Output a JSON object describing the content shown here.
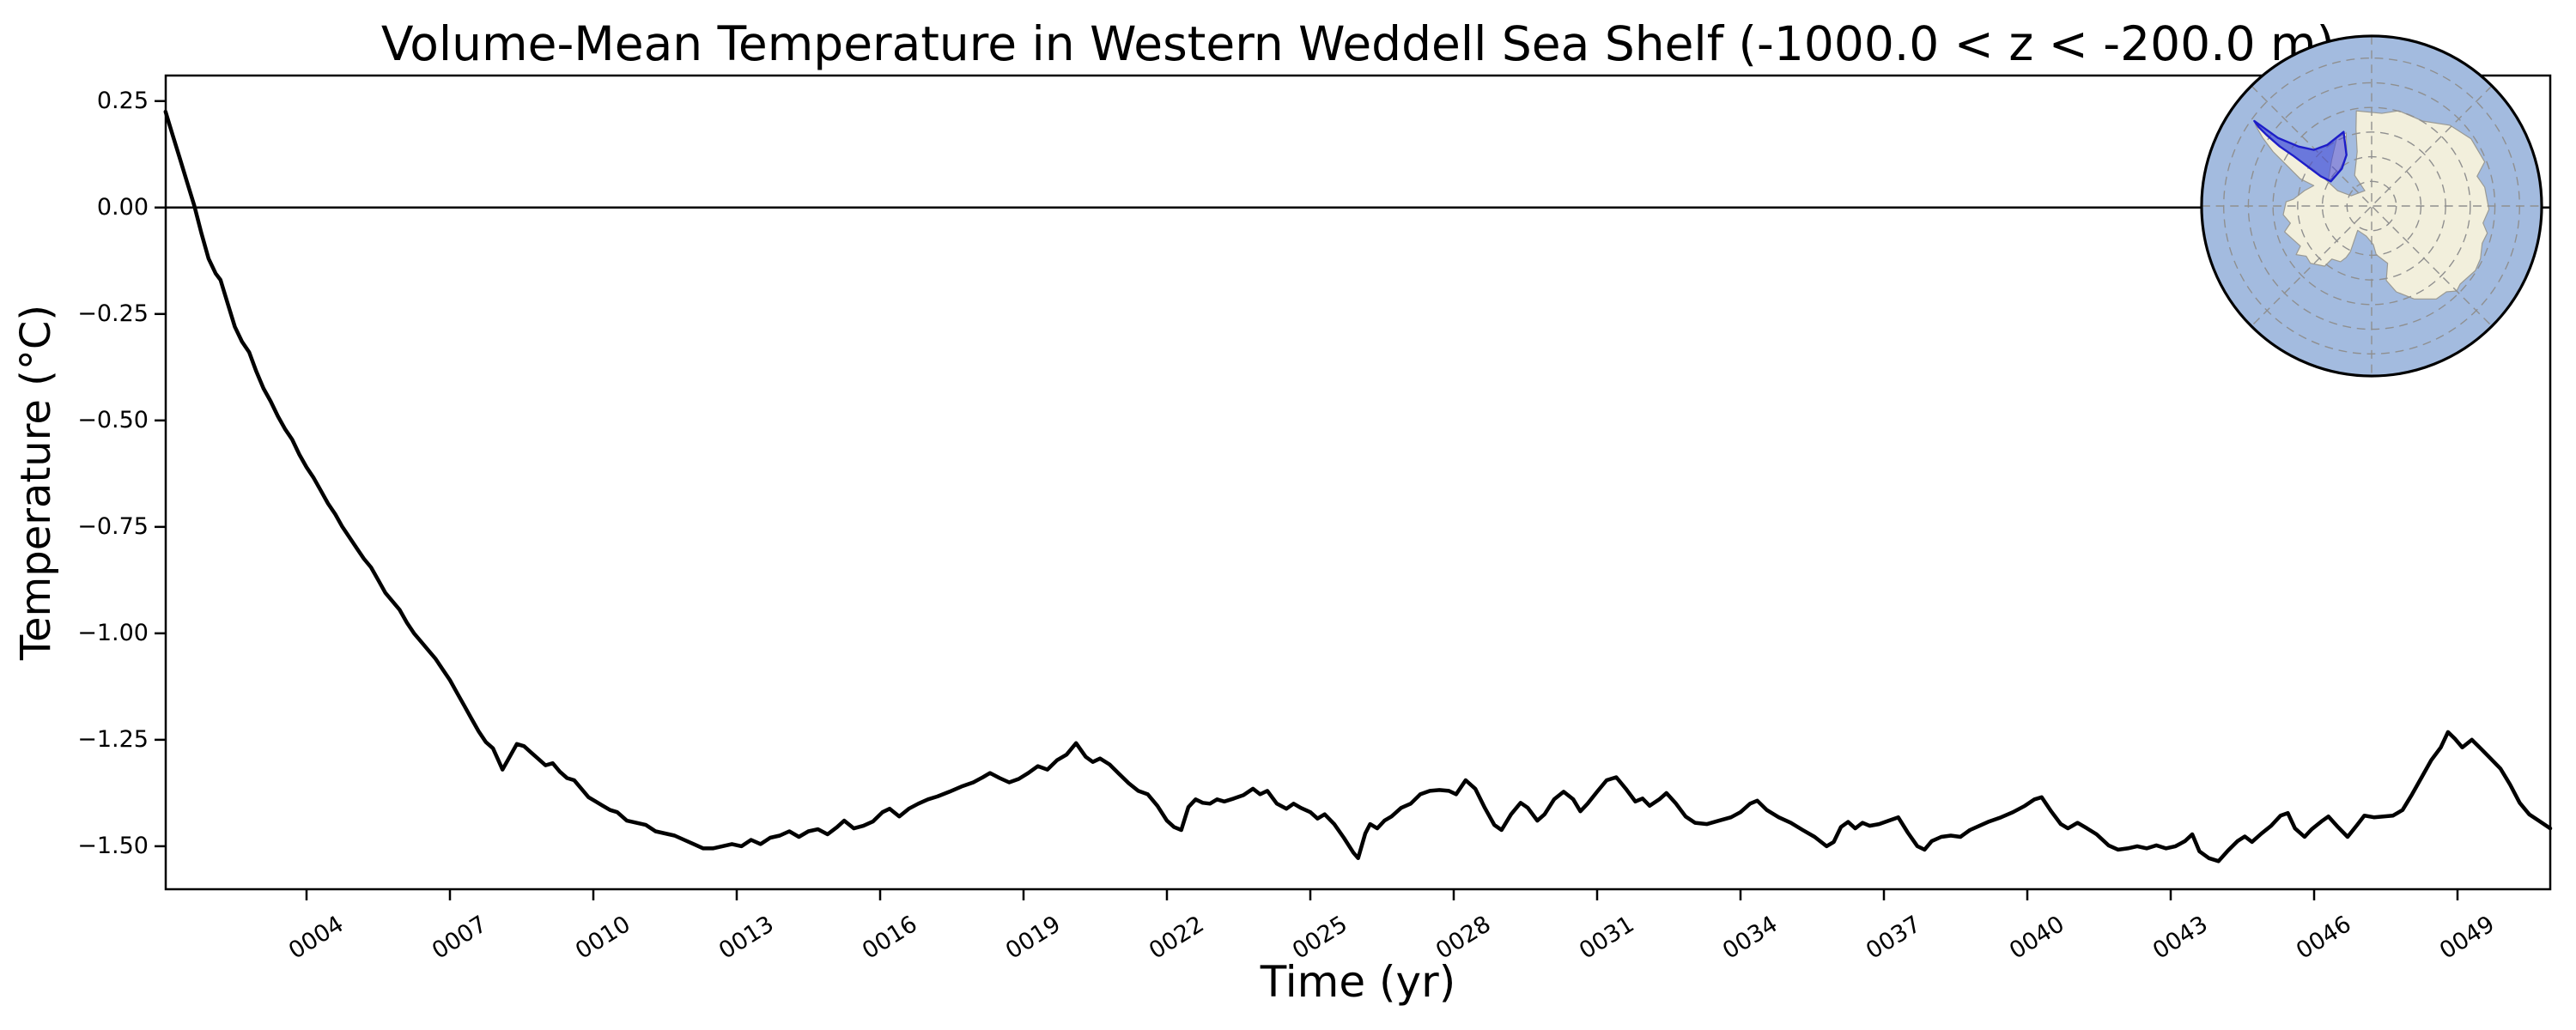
{
  "chart_data": {
    "type": "line",
    "title": "Volume-Mean Temperature in Western Weddell Sea Shelf (-1000.0 < z < -200.0 m)",
    "xlabel": "Time (yr)",
    "ylabel": "Temperature (°C)",
    "xlim": [
      1.054,
      50.94
    ],
    "ylim": [
      -1.601,
      0.31
    ],
    "grid": false,
    "zero_line_y": 0.0,
    "line": {
      "color": "#000000",
      "width": 4.5
    },
    "axis": {
      "spine_color": "#000000",
      "spine_width": 2.5,
      "tick_length": 13,
      "tick_width": 2.5
    },
    "x_ticks": {
      "values": [
        4,
        7,
        10,
        13,
        16,
        19,
        22,
        25,
        28,
        31,
        34,
        37,
        40,
        43,
        46,
        49
      ],
      "labels": [
        "0004",
        "0007",
        "0010",
        "0013",
        "0016",
        "0019",
        "0022",
        "0025",
        "0028",
        "0031",
        "0034",
        "0037",
        "0040",
        "0043",
        "0046",
        "0049"
      ],
      "rotation_deg": 32
    },
    "y_ticks": {
      "values": [
        0.25,
        0.0,
        -0.25,
        -0.5,
        -0.75,
        -1.0,
        -1.25,
        -1.5
      ],
      "labels": [
        "0.25",
        "0.00",
        "−0.25",
        "−0.50",
        "−0.75",
        "−1.00",
        "−1.25",
        "−1.50"
      ]
    },
    "series": [
      {
        "name": "volume-mean-temperature",
        "x": [
          1.05,
          1.2,
          1.35,
          1.5,
          1.65,
          1.8,
          1.95,
          2.1,
          2.2,
          2.35,
          2.5,
          2.65,
          2.8,
          2.95,
          3.1,
          3.25,
          3.4,
          3.55,
          3.7,
          3.85,
          4.0,
          4.15,
          4.3,
          4.45,
          4.6,
          4.75,
          4.9,
          5.05,
          5.2,
          5.35,
          5.5,
          5.65,
          5.8,
          5.95,
          6.1,
          6.25,
          6.4,
          6.55,
          6.7,
          6.85,
          7.0,
          7.15,
          7.3,
          7.45,
          7.6,
          7.75,
          7.9,
          8.0,
          8.1,
          8.25,
          8.4,
          8.55,
          8.7,
          8.85,
          9.0,
          9.15,
          9.3,
          9.45,
          9.6,
          9.75,
          9.9,
          10.05,
          10.2,
          10.35,
          10.5,
          10.7,
          10.9,
          11.1,
          11.3,
          11.5,
          11.7,
          11.9,
          12.1,
          12.3,
          12.5,
          12.7,
          12.9,
          13.1,
          13.3,
          13.5,
          13.7,
          13.9,
          14.1,
          14.3,
          14.5,
          14.7,
          14.9,
          15.1,
          15.25,
          15.45,
          15.65,
          15.85,
          16.05,
          16.2,
          16.4,
          16.6,
          16.8,
          17.0,
          17.2,
          17.45,
          17.7,
          17.95,
          18.15,
          18.3,
          18.5,
          18.7,
          18.9,
          19.1,
          19.3,
          19.5,
          19.7,
          19.9,
          20.1,
          20.3,
          20.45,
          20.6,
          20.8,
          21.0,
          21.2,
          21.4,
          21.6,
          21.8,
          22.0,
          22.15,
          22.3,
          22.45,
          22.6,
          22.75,
          22.9,
          23.05,
          23.2,
          23.4,
          23.6,
          23.8,
          23.95,
          24.1,
          24.3,
          24.5,
          24.65,
          24.8,
          25.0,
          25.15,
          25.3,
          25.5,
          25.7,
          25.9,
          26.0,
          26.15,
          26.25,
          26.4,
          26.55,
          26.7,
          26.9,
          27.1,
          27.3,
          27.5,
          27.7,
          27.9,
          28.05,
          28.25,
          28.45,
          28.65,
          28.85,
          29.0,
          29.2,
          29.4,
          29.55,
          29.75,
          29.9,
          30.1,
          30.3,
          30.5,
          30.65,
          30.8,
          31.0,
          31.2,
          31.4,
          31.6,
          31.8,
          31.95,
          32.1,
          32.3,
          32.45,
          32.65,
          32.85,
          33.05,
          33.3,
          33.55,
          33.8,
          34.0,
          34.2,
          34.35,
          34.55,
          34.8,
          35.05,
          35.3,
          35.55,
          35.8,
          35.95,
          36.1,
          36.25,
          36.4,
          36.55,
          36.7,
          36.9,
          37.1,
          37.3,
          37.5,
          37.7,
          37.85,
          38.0,
          38.2,
          38.4,
          38.6,
          38.8,
          39.0,
          39.2,
          39.45,
          39.7,
          39.95,
          40.15,
          40.3,
          40.5,
          40.7,
          40.85,
          41.05,
          41.25,
          41.45,
          41.7,
          41.9,
          42.1,
          42.3,
          42.5,
          42.7,
          42.9,
          43.1,
          43.3,
          43.45,
          43.6,
          43.8,
          44.0,
          44.2,
          44.4,
          44.55,
          44.7,
          44.9,
          45.1,
          45.3,
          45.45,
          45.6,
          45.8,
          45.95,
          46.15,
          46.3,
          46.5,
          46.7,
          46.9,
          47.05,
          47.25,
          47.45,
          47.65,
          47.85,
          48.05,
          48.25,
          48.45,
          48.65,
          48.8,
          48.95,
          49.1,
          49.3,
          49.5,
          49.7,
          49.9,
          50.1,
          50.3,
          50.5,
          50.7,
          50.94
        ],
        "y": [
          0.225,
          0.17,
          0.115,
          0.06,
          0.005,
          -0.06,
          -0.12,
          -0.155,
          -0.17,
          -0.225,
          -0.28,
          -0.315,
          -0.34,
          -0.385,
          -0.425,
          -0.455,
          -0.49,
          -0.52,
          -0.545,
          -0.58,
          -0.61,
          -0.635,
          -0.665,
          -0.695,
          -0.72,
          -0.75,
          -0.775,
          -0.8,
          -0.825,
          -0.845,
          -0.875,
          -0.905,
          -0.925,
          -0.945,
          -0.975,
          -1.0,
          -1.02,
          -1.04,
          -1.06,
          -1.085,
          -1.11,
          -1.14,
          -1.17,
          -1.2,
          -1.23,
          -1.255,
          -1.27,
          -1.295,
          -1.32,
          -1.29,
          -1.26,
          -1.265,
          -1.28,
          -1.295,
          -1.31,
          -1.305,
          -1.325,
          -1.34,
          -1.345,
          -1.365,
          -1.385,
          -1.395,
          -1.405,
          -1.415,
          -1.42,
          -1.44,
          -1.445,
          -1.45,
          -1.465,
          -1.47,
          -1.475,
          -1.485,
          -1.495,
          -1.505,
          -1.505,
          -1.5,
          -1.495,
          -1.5,
          -1.485,
          -1.495,
          -1.48,
          -1.475,
          -1.465,
          -1.478,
          -1.465,
          -1.46,
          -1.472,
          -1.455,
          -1.44,
          -1.458,
          -1.452,
          -1.442,
          -1.42,
          -1.412,
          -1.43,
          -1.412,
          -1.4,
          -1.39,
          -1.383,
          -1.372,
          -1.36,
          -1.35,
          -1.338,
          -1.328,
          -1.34,
          -1.35,
          -1.342,
          -1.328,
          -1.312,
          -1.32,
          -1.298,
          -1.285,
          -1.258,
          -1.29,
          -1.302,
          -1.294,
          -1.308,
          -1.33,
          -1.352,
          -1.37,
          -1.378,
          -1.405,
          -1.44,
          -1.455,
          -1.462,
          -1.408,
          -1.39,
          -1.398,
          -1.4,
          -1.39,
          -1.395,
          -1.388,
          -1.38,
          -1.365,
          -1.378,
          -1.37,
          -1.4,
          -1.412,
          -1.4,
          -1.41,
          -1.42,
          -1.435,
          -1.425,
          -1.448,
          -1.48,
          -1.515,
          -1.528,
          -1.47,
          -1.448,
          -1.458,
          -1.44,
          -1.43,
          -1.41,
          -1.4,
          -1.378,
          -1.37,
          -1.368,
          -1.37,
          -1.378,
          -1.345,
          -1.365,
          -1.41,
          -1.45,
          -1.462,
          -1.425,
          -1.398,
          -1.41,
          -1.44,
          -1.425,
          -1.39,
          -1.372,
          -1.39,
          -1.418,
          -1.4,
          -1.372,
          -1.345,
          -1.338,
          -1.365,
          -1.395,
          -1.388,
          -1.405,
          -1.39,
          -1.375,
          -1.4,
          -1.43,
          -1.445,
          -1.448,
          -1.44,
          -1.432,
          -1.42,
          -1.4,
          -1.393,
          -1.415,
          -1.432,
          -1.445,
          -1.462,
          -1.478,
          -1.5,
          -1.49,
          -1.455,
          -1.443,
          -1.458,
          -1.445,
          -1.452,
          -1.448,
          -1.44,
          -1.432,
          -1.468,
          -1.5,
          -1.508,
          -1.488,
          -1.478,
          -1.475,
          -1.478,
          -1.462,
          -1.452,
          -1.442,
          -1.432,
          -1.42,
          -1.405,
          -1.39,
          -1.385,
          -1.418,
          -1.448,
          -1.458,
          -1.445,
          -1.458,
          -1.472,
          -1.498,
          -1.508,
          -1.505,
          -1.5,
          -1.505,
          -1.498,
          -1.505,
          -1.5,
          -1.488,
          -1.472,
          -1.512,
          -1.528,
          -1.535,
          -1.51,
          -1.488,
          -1.477,
          -1.49,
          -1.47,
          -1.452,
          -1.428,
          -1.422,
          -1.458,
          -1.478,
          -1.46,
          -1.442,
          -1.43,
          -1.455,
          -1.478,
          -1.45,
          -1.428,
          -1.432,
          -1.43,
          -1.428,
          -1.415,
          -1.378,
          -1.338,
          -1.298,
          -1.268,
          -1.232,
          -1.248,
          -1.268,
          -1.25,
          -1.272,
          -1.295,
          -1.318,
          -1.355,
          -1.398,
          -1.425,
          -1.44,
          -1.458
        ]
      }
    ]
  },
  "inset_map": {
    "name": "Antarctica location map, south polar stereographic",
    "highlighted_region": "Western Weddell Sea Shelf",
    "colors": {
      "ocean": "#a3bbdf",
      "land": "#f2efdc",
      "coast": "#9a9a94",
      "graticule": "#8f8f8f",
      "region_fill": "#3c42d9",
      "region_edge": "#1d1dc9",
      "border": "#000000"
    },
    "region_fill_opacity": 0.55,
    "graticule_radii": [
      0.145,
      0.29,
      0.435,
      0.58,
      0.725,
      0.87
    ],
    "spoke_angles_deg": [
      0,
      45,
      90,
      135
    ],
    "land_outline": [
      [
        -0.09,
        -0.56
      ],
      [
        0.06,
        -0.545
      ],
      [
        0.16,
        -0.56
      ],
      [
        0.3,
        -0.5
      ],
      [
        0.46,
        -0.475
      ],
      [
        0.585,
        -0.395
      ],
      [
        0.665,
        -0.26
      ],
      [
        0.62,
        -0.175
      ],
      [
        0.665,
        -0.11
      ],
      [
        0.69,
        0.02
      ],
      [
        0.655,
        0.1
      ],
      [
        0.68,
        0.16
      ],
      [
        0.65,
        0.22
      ],
      [
        0.64,
        0.31
      ],
      [
        0.61,
        0.38
      ],
      [
        0.52,
        0.46
      ],
      [
        0.5,
        0.5
      ],
      [
        0.44,
        0.505
      ],
      [
        0.38,
        0.547
      ],
      [
        0.25,
        0.547
      ],
      [
        0.145,
        0.505
      ],
      [
        0.086,
        0.438
      ],
      [
        0.094,
        0.337
      ],
      [
        0.027,
        0.286
      ],
      [
        0.01,
        0.227
      ],
      [
        -0.032,
        0.177
      ],
      [
        -0.082,
        0.143
      ],
      [
        -0.125,
        0.269
      ],
      [
        -0.15,
        0.303
      ],
      [
        -0.183,
        0.328
      ],
      [
        -0.234,
        0.312
      ],
      [
        -0.276,
        0.354
      ],
      [
        -0.36,
        0.337
      ],
      [
        -0.385,
        0.295
      ],
      [
        -0.444,
        0.286
      ],
      [
        -0.419,
        0.236
      ],
      [
        -0.512,
        0.152
      ],
      [
        -0.478,
        0.101
      ],
      [
        -0.52,
        0.051
      ],
      [
        -0.503,
        -0.025
      ],
      [
        -0.46,
        -0.04
      ],
      [
        -0.394,
        -0.091
      ],
      [
        -0.34,
        -0.12
      ],
      [
        -0.42,
        -0.16
      ],
      [
        -0.5,
        -0.24
      ],
      [
        -0.58,
        -0.32
      ],
      [
        -0.64,
        -0.4
      ],
      [
        -0.68,
        -0.47
      ],
      [
        -0.69,
        -0.5
      ],
      [
        -0.63,
        -0.43
      ],
      [
        -0.565,
        -0.375
      ],
      [
        -0.49,
        -0.315
      ],
      [
        -0.41,
        -0.26
      ],
      [
        -0.335,
        -0.21
      ],
      [
        -0.27,
        -0.155
      ],
      [
        -0.2,
        -0.09
      ],
      [
        -0.12,
        -0.06
      ],
      [
        -0.04,
        -0.09
      ],
      [
        -0.1,
        -0.18
      ],
      [
        -0.085,
        -0.32
      ],
      [
        -0.092,
        -0.45
      ]
    ],
    "ice_shelf_patch": [
      [
        -0.205,
        -0.4
      ],
      [
        -0.15,
        -0.43
      ],
      [
        -0.145,
        -0.3
      ],
      [
        -0.2,
        -0.19
      ],
      [
        -0.255,
        -0.15
      ],
      [
        -0.235,
        -0.27
      ]
    ],
    "region_outline": [
      [
        -0.69,
        -0.5
      ],
      [
        -0.55,
        -0.4
      ],
      [
        -0.43,
        -0.35
      ],
      [
        -0.34,
        -0.33
      ],
      [
        -0.26,
        -0.36
      ],
      [
        -0.165,
        -0.436
      ],
      [
        -0.148,
        -0.3
      ],
      [
        -0.175,
        -0.22
      ],
      [
        -0.24,
        -0.145
      ],
      [
        -0.3,
        -0.175
      ],
      [
        -0.38,
        -0.235
      ],
      [
        -0.46,
        -0.295
      ],
      [
        -0.54,
        -0.35
      ],
      [
        -0.62,
        -0.42
      ],
      [
        -0.665,
        -0.465
      ]
    ]
  }
}
